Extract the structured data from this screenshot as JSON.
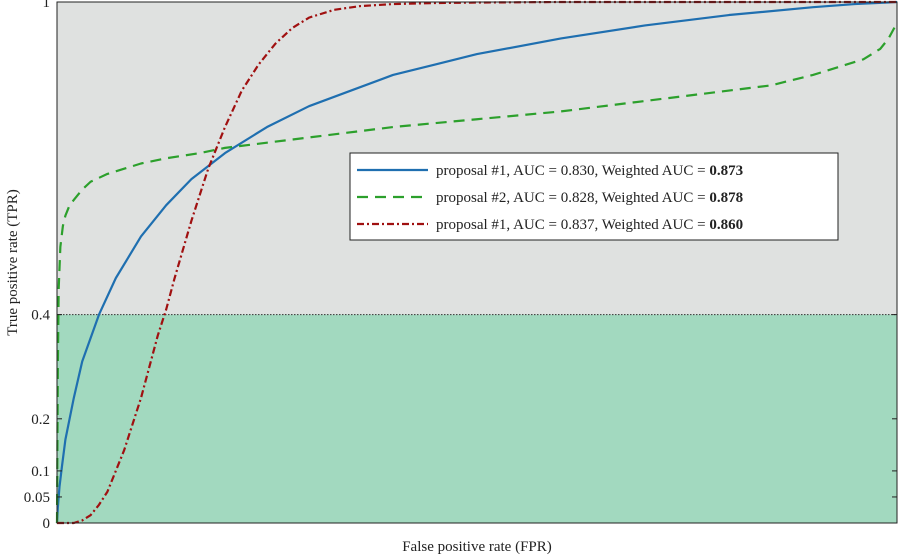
{
  "chart_data": {
    "type": "line",
    "title": "",
    "xlabel": "False positive rate (FPR)",
    "ylabel": "True positive rate (TPR)",
    "xlim": [
      0,
      1
    ],
    "ylim": [
      0,
      1
    ],
    "x_ticks": [],
    "y_ticks": [
      {
        "value": 0,
        "label": "0"
      },
      {
        "value": 0.05,
        "label": "0.05"
      },
      {
        "value": 0.1,
        "label": "0.1"
      },
      {
        "value": 0.2,
        "label": "0.2"
      },
      {
        "value": 0.4,
        "label": "0.4"
      },
      {
        "value": 1,
        "label": "1"
      }
    ],
    "grid": false,
    "regions": [
      {
        "y_from": 0.4,
        "y_to": 1,
        "color": "#dfe1e0"
      },
      {
        "y_from": 0,
        "y_to": 0.4,
        "color": "#a2d9bf"
      }
    ],
    "threshold_line": {
      "y": 0.4,
      "color": "#333333",
      "style": "dotted"
    },
    "legend_position": "center-right",
    "series": [
      {
        "name": "proposal #1, AUC = 0.830, Weighted AUC = ",
        "name_bold": "0.873",
        "color": "#1f6fb0",
        "style": "solid",
        "x": [
          0,
          0.001,
          0.003,
          0.006,
          0.01,
          0.02,
          0.03,
          0.05,
          0.07,
          0.1,
          0.13,
          0.16,
          0.2,
          0.25,
          0.3,
          0.35,
          0.4,
          0.45,
          0.5,
          0.6,
          0.7,
          0.8,
          0.9,
          0.95,
          1
        ],
        "y": [
          0,
          0.03,
          0.07,
          0.11,
          0.16,
          0.24,
          0.31,
          0.4,
          0.47,
          0.55,
          0.61,
          0.66,
          0.71,
          0.76,
          0.8,
          0.83,
          0.86,
          0.88,
          0.9,
          0.93,
          0.955,
          0.975,
          0.99,
          0.996,
          1
        ]
      },
      {
        "name": "proposal #2, AUC = 0.828, Weighted AUC = ",
        "name_bold": "0.878",
        "color": "#2ca02c",
        "style": "dashed",
        "x": [
          0,
          0.001,
          0.002,
          0.004,
          0.007,
          0.01,
          0.015,
          0.02,
          0.03,
          0.04,
          0.06,
          0.08,
          0.1,
          0.13,
          0.17,
          0.2,
          0.25,
          0.3,
          0.4,
          0.5,
          0.6,
          0.7,
          0.8,
          0.85,
          0.9,
          0.93,
          0.96,
          0.98,
          0.99,
          1
        ],
        "y": [
          0,
          0.3,
          0.45,
          0.53,
          0.57,
          0.59,
          0.61,
          0.62,
          0.64,
          0.655,
          0.67,
          0.68,
          0.69,
          0.7,
          0.71,
          0.72,
          0.73,
          0.74,
          0.76,
          0.775,
          0.79,
          0.81,
          0.83,
          0.84,
          0.86,
          0.875,
          0.89,
          0.91,
          0.93,
          0.96
        ]
      },
      {
        "name": "proposal #1, AUC = 0.837, Weighted AUC = ",
        "name_bold": "0.860",
        "color": "#a01010",
        "style": "dashdot",
        "x": [
          0,
          0.02,
          0.03,
          0.04,
          0.05,
          0.06,
          0.07,
          0.08,
          0.09,
          0.1,
          0.11,
          0.12,
          0.13,
          0.14,
          0.16,
          0.18,
          0.2,
          0.22,
          0.24,
          0.26,
          0.28,
          0.3,
          0.33,
          0.36,
          0.4,
          0.45,
          0.5,
          0.6,
          0.7,
          1
        ],
        "y": [
          0,
          0,
          0.005,
          0.015,
          0.035,
          0.06,
          0.1,
          0.14,
          0.19,
          0.24,
          0.3,
          0.36,
          0.41,
          0.47,
          0.58,
          0.68,
          0.76,
          0.83,
          0.88,
          0.92,
          0.95,
          0.97,
          0.985,
          0.992,
          0.996,
          0.998,
          0.999,
          1,
          1,
          1
        ]
      }
    ]
  }
}
